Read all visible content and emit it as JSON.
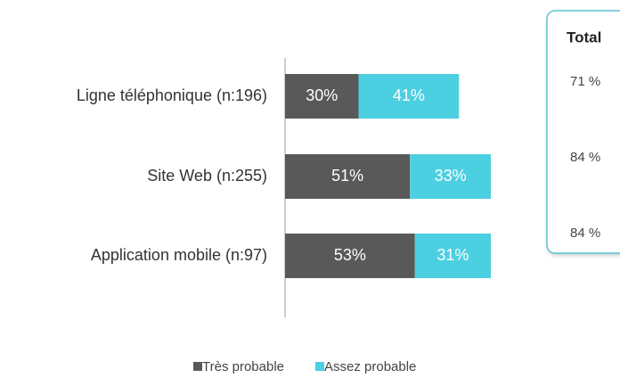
{
  "chart_data": {
    "type": "stacked-bar-horizontal",
    "categories": [
      "Ligne téléphonique (n:196)",
      "Site Web (n:255)",
      "Application mobile (n:97)"
    ],
    "series": [
      {
        "name": "Très probable",
        "color": "#595959",
        "values": [
          30,
          51,
          53
        ],
        "value_labels": [
          "30%",
          "51%",
          "53%"
        ]
      },
      {
        "name": "Assez probable",
        "color": "#4ccfe0",
        "values": [
          41,
          33,
          31
        ],
        "value_labels": [
          "41%",
          "33%",
          "31%"
        ]
      }
    ],
    "totals": {
      "title": "Total",
      "values": [
        71,
        84,
        84
      ],
      "value_labels": [
        "71 %",
        "84 %",
        "84 %"
      ]
    },
    "legend": "bottom"
  }
}
